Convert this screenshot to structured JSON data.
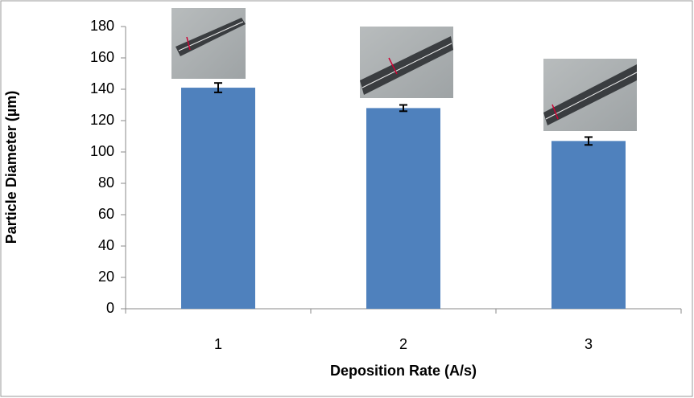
{
  "chart_data": {
    "type": "bar",
    "categories": [
      "1",
      "2",
      "3"
    ],
    "values": [
      141,
      128,
      107
    ],
    "errors": [
      3,
      2,
      2.5
    ],
    "color": "#4f81bd",
    "xlabel": "Deposition Rate (A/s)",
    "ylabel": "Particle Diameter (µm)",
    "ylim": [
      0,
      180
    ],
    "yticks": [
      0,
      20,
      40,
      60,
      80,
      100,
      120,
      140,
      160,
      180
    ],
    "grid": false
  }
}
